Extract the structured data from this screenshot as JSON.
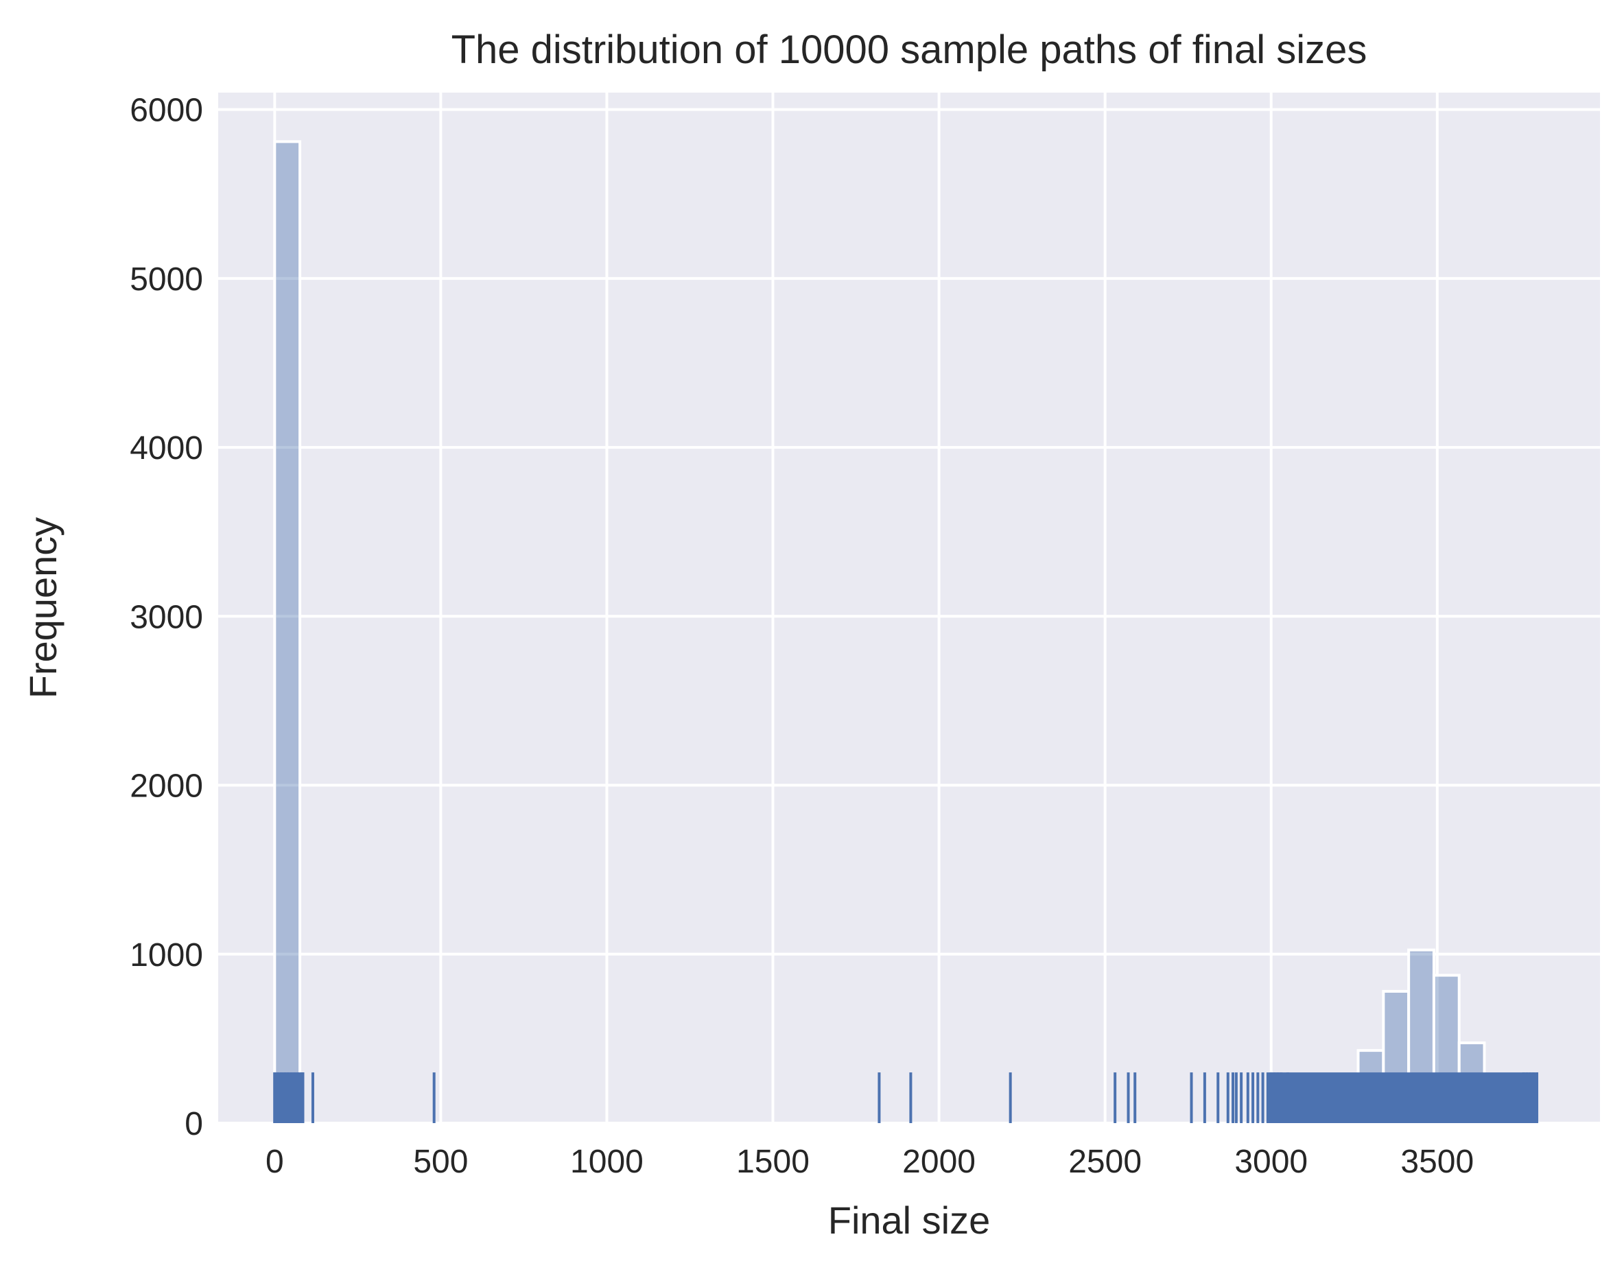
{
  "chart_data": {
    "type": "bar",
    "title": "The distribution of 10000 sample paths of final sizes",
    "xlabel": "Final size",
    "ylabel": "Frequency",
    "xlim": [
      -170,
      3990
    ],
    "ylim": [
      0,
      6100
    ],
    "xticks": [
      0,
      500,
      1000,
      1500,
      2000,
      2500,
      3000,
      3500
    ],
    "xtick_labels": [
      "0",
      "500",
      "1000",
      "1500",
      "2000",
      "2500",
      "3000",
      "3500"
    ],
    "yticks": [
      0,
      1000,
      2000,
      3000,
      4000,
      5000,
      6000
    ],
    "ytick_labels": [
      "0",
      "1000",
      "2000",
      "3000",
      "4000",
      "5000",
      "6000"
    ],
    "grid": true,
    "bin_width": 76,
    "histogram": {
      "bin_starts": [
        0,
        3262,
        3338,
        3414,
        3490,
        3566
      ],
      "values": [
        5810,
        430,
        780,
        1025,
        875,
        475
      ],
      "color": "#4c72b0",
      "alpha": 0.4
    },
    "rug": {
      "height_value": 300,
      "color": "#4c72b0",
      "dense_ranges": [
        [
          0,
          85
        ],
        [
          2990,
          3800
        ]
      ],
      "positions": [
        0,
        10,
        20,
        30,
        40,
        50,
        60,
        70,
        80,
        85,
        115,
        480,
        1820,
        1915,
        2215,
        2530,
        2570,
        2590,
        2760,
        2800,
        2840,
        2870,
        2885,
        2895,
        2910,
        2930,
        2945,
        2960,
        2975,
        3000,
        3010,
        3020,
        3030,
        3050,
        3760,
        3770,
        3780,
        3790,
        3800
      ]
    },
    "colors": {
      "plot_background": "#eaeaf2",
      "grid": "#ffffff",
      "text": "#262626"
    }
  }
}
